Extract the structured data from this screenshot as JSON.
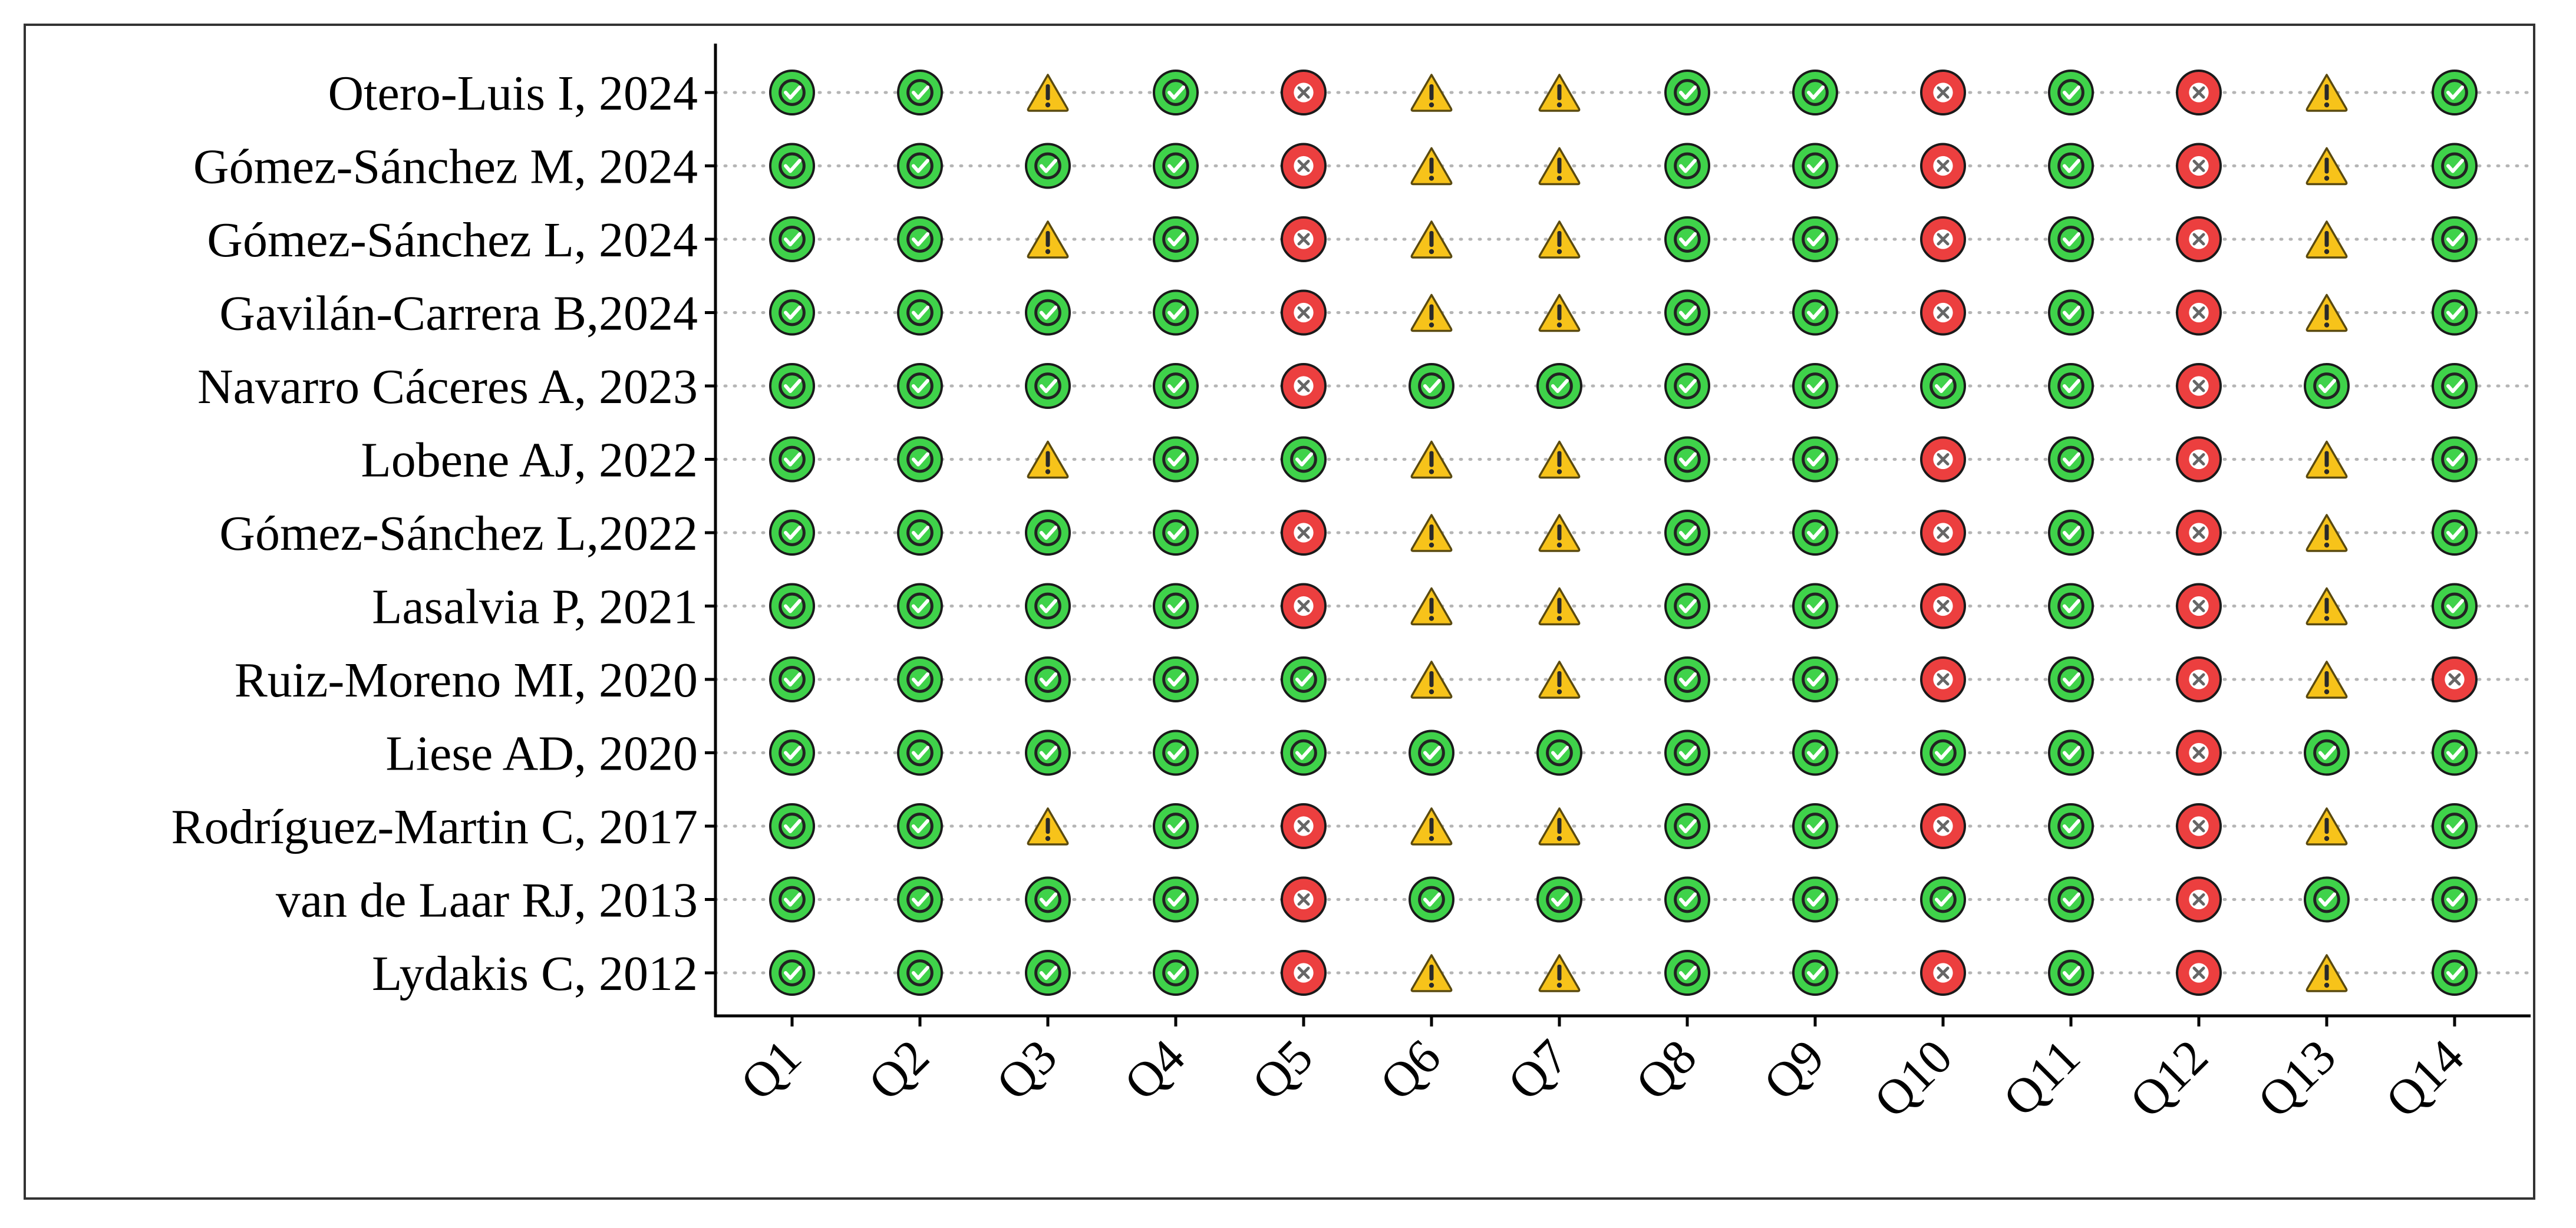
{
  "chart_data": {
    "type": "heatmap",
    "title": "",
    "xlabel": "",
    "ylabel": "",
    "grid": "dotted horizontal lines",
    "legend": "none",
    "x": [
      "Q1",
      "Q2",
      "Q3",
      "Q4",
      "Q5",
      "Q6",
      "Q7",
      "Q8",
      "Q9",
      "Q10",
      "Q11",
      "Q12",
      "Q13",
      "Q14"
    ],
    "y": [
      "Otero-Luis I, 2024",
      "Gómez-Sánchez M, 2024",
      "Gómez-Sánchez L, 2024",
      "Gavilán-Carrera B,2024",
      "Navarro Cáceres A, 2023",
      "Lobene AJ, 2022",
      "Gómez-Sánchez L,2022",
      "Lasalvia P, 2021",
      "Ruiz-Moreno MI, 2020",
      "Liese AD, 2020",
      "Rodríguez-Martin C, 2017",
      "van de Laar RJ, 2013",
      "Lydakis C, 2012"
    ],
    "values": [
      [
        "yes",
        "yes",
        "warn",
        "yes",
        "no",
        "warn",
        "warn",
        "yes",
        "yes",
        "no",
        "yes",
        "no",
        "warn",
        "yes"
      ],
      [
        "yes",
        "yes",
        "yes",
        "yes",
        "no",
        "warn",
        "warn",
        "yes",
        "yes",
        "no",
        "yes",
        "no",
        "warn",
        "yes"
      ],
      [
        "yes",
        "yes",
        "warn",
        "yes",
        "no",
        "warn",
        "warn",
        "yes",
        "yes",
        "no",
        "yes",
        "no",
        "warn",
        "yes"
      ],
      [
        "yes",
        "yes",
        "yes",
        "yes",
        "no",
        "warn",
        "warn",
        "yes",
        "yes",
        "no",
        "yes",
        "no",
        "warn",
        "yes"
      ],
      [
        "yes",
        "yes",
        "yes",
        "yes",
        "no",
        "yes",
        "yes",
        "yes",
        "yes",
        "yes",
        "yes",
        "no",
        "yes",
        "yes"
      ],
      [
        "yes",
        "yes",
        "warn",
        "yes",
        "yes",
        "warn",
        "warn",
        "yes",
        "yes",
        "no",
        "yes",
        "no",
        "warn",
        "yes"
      ],
      [
        "yes",
        "yes",
        "yes",
        "yes",
        "no",
        "warn",
        "warn",
        "yes",
        "yes",
        "no",
        "yes",
        "no",
        "warn",
        "yes"
      ],
      [
        "yes",
        "yes",
        "yes",
        "yes",
        "no",
        "warn",
        "warn",
        "yes",
        "yes",
        "no",
        "yes",
        "no",
        "warn",
        "yes"
      ],
      [
        "yes",
        "yes",
        "yes",
        "yes",
        "yes",
        "warn",
        "warn",
        "yes",
        "yes",
        "no",
        "yes",
        "no",
        "warn",
        "no"
      ],
      [
        "yes",
        "yes",
        "yes",
        "yes",
        "yes",
        "yes",
        "yes",
        "yes",
        "yes",
        "yes",
        "yes",
        "no",
        "yes",
        "yes"
      ],
      [
        "yes",
        "yes",
        "warn",
        "yes",
        "no",
        "warn",
        "warn",
        "yes",
        "yes",
        "no",
        "yes",
        "no",
        "warn",
        "yes"
      ],
      [
        "yes",
        "yes",
        "yes",
        "yes",
        "no",
        "yes",
        "yes",
        "yes",
        "yes",
        "yes",
        "yes",
        "no",
        "yes",
        "yes"
      ],
      [
        "yes",
        "yes",
        "yes",
        "yes",
        "no",
        "warn",
        "warn",
        "yes",
        "yes",
        "no",
        "yes",
        "no",
        "warn",
        "yes"
      ]
    ],
    "symbols": {
      "yes": {
        "icon": "check-circle-icon",
        "color": "#3fd24a"
      },
      "no": {
        "icon": "x-circle-icon",
        "color": "#ec3f3f"
      },
      "warn": {
        "icon": "warning-triangle-icon",
        "color": "#f7c31a"
      }
    }
  }
}
